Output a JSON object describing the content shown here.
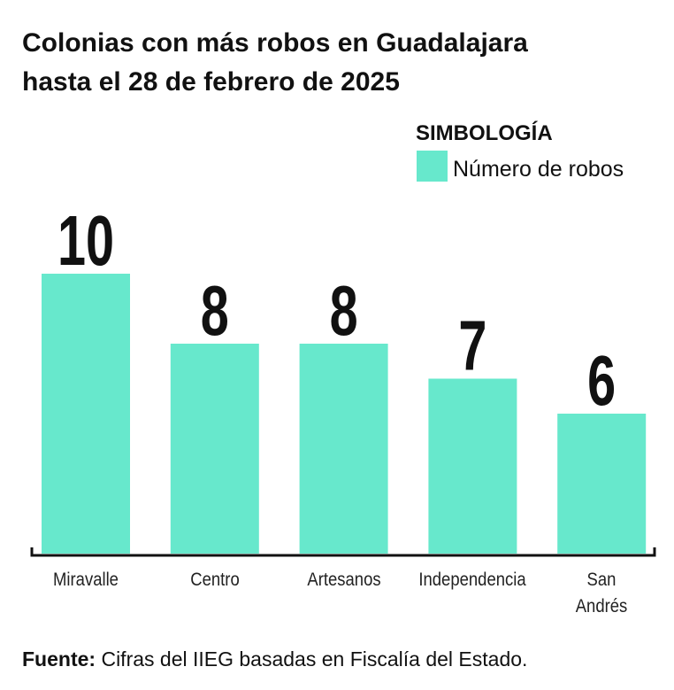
{
  "chart_data": {
    "type": "bar",
    "title": [
      "Colonias con más robos en Guadalajara",
      "hasta el 28 de febrero de 2025"
    ],
    "legend_title": "SIMBOLOGÍA",
    "series": [
      {
        "name": "Número de robos",
        "color": "#67e8cc",
        "values": [
          10,
          8,
          8,
          7,
          6
        ]
      }
    ],
    "categories": [
      "Miravalle",
      "Centro",
      "Artesanos",
      "Independencia",
      "San Andrés"
    ],
    "ylim": [
      2,
      12
    ],
    "source_label": "Fuente:",
    "source": "Cifras del IIEG basadas en Fiscalía del Estado."
  }
}
